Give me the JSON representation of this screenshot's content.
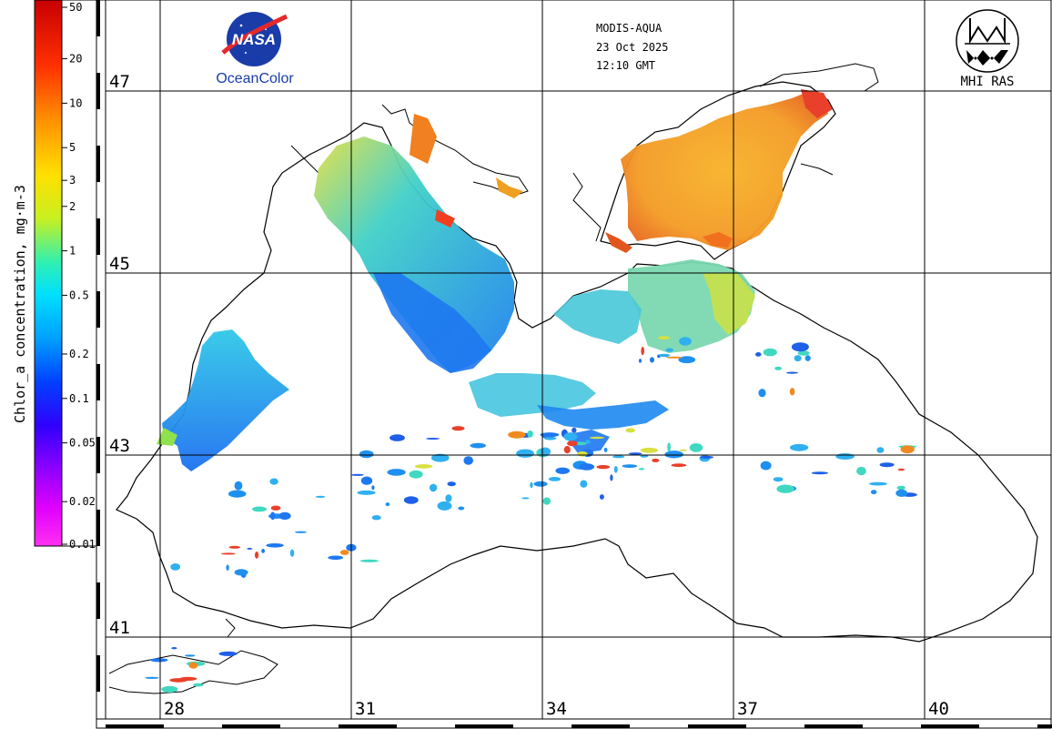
{
  "colorbar": {
    "title": "Chlor_a concentration, mg·m-3",
    "ticks": [
      "50",
      "20",
      "10",
      "5",
      "3",
      "2",
      "1",
      "0.5",
      "0.2",
      "0.1",
      "0.05",
      "0.02",
      "0.01"
    ]
  },
  "header": {
    "sensor": "MODIS-AQUA",
    "date": "23 Oct 2025",
    "time": "12:10 GMT"
  },
  "logos": {
    "nasa_text": "NASA",
    "oceancolor_text": "OceanColor",
    "mhi_text": "MHI RAS"
  },
  "grid": {
    "lat_labels": [
      "47",
      "45",
      "43",
      "41"
    ],
    "lon_labels": [
      "28",
      "31",
      "34",
      "37",
      "40"
    ]
  },
  "colors": {
    "high": "#e8301c",
    "mid_high": "#f5a020",
    "mid": "#e8e830",
    "mid_low": "#30d8e8",
    "low": "#1e6ef0",
    "grid": "#000000",
    "coast": "#000000"
  }
}
